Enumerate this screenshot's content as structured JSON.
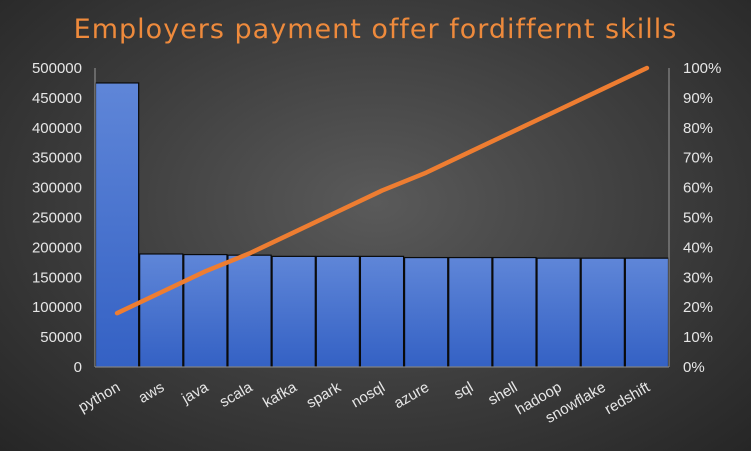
{
  "chart_data": {
    "type": "bar",
    "title": "Employers payment offer fordiffernt  skills",
    "categories": [
      "python",
      "aws",
      "java",
      "scala",
      "kafka",
      "spark",
      "nosql",
      "azure",
      "sql",
      "shell",
      "hadoop",
      "snowflake",
      "redshift"
    ],
    "series": [
      {
        "type": "bar",
        "values": [
          475000,
          189000,
          188000,
          187000,
          185000,
          185000,
          185000,
          183000,
          183000,
          183000,
          182000,
          182000,
          182000
        ]
      },
      {
        "type": "line",
        "axis": "secondary",
        "values": [
          18,
          25,
          32,
          38,
          45,
          52,
          59,
          65,
          72,
          79,
          86,
          93,
          100
        ]
      }
    ],
    "y_ticks": [
      "0",
      "50000",
      "100000",
      "150000",
      "200000",
      "250000",
      "300000",
      "350000",
      "400000",
      "450000",
      "500000"
    ],
    "y2_ticks": [
      "0%",
      "10%",
      "20%",
      "30%",
      "40%",
      "50%",
      "60%",
      "70%",
      "80%",
      "90%",
      "100%"
    ],
    "ylim": [
      0,
      500000
    ],
    "y2lim": [
      0,
      100
    ],
    "grid": false,
    "colors": {
      "bar": "#3a66c8",
      "bar_edge": "#0a0a0a",
      "line": "#ee7d31",
      "title": "#ee8a3c",
      "text": "#e6e6e6",
      "axis": "#9a9a9a"
    }
  }
}
